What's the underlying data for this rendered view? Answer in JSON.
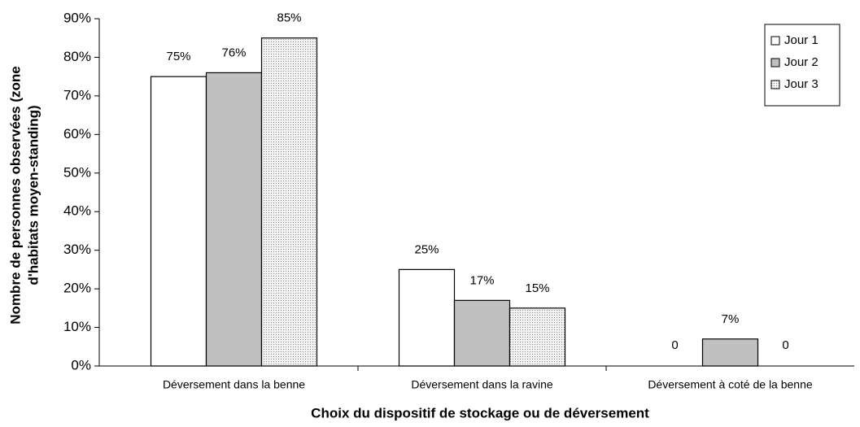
{
  "chart_data": {
    "type": "bar",
    "x_label": "Choix du dispositif de stockage ou de déversement",
    "y_label": [
      "Nombre de personnes observées (zone",
      "d'habitats moyen-standing)"
    ],
    "categories": [
      "Déversement dans la benne",
      "Déversement dans la ravine",
      "Déversement à coté de la benne"
    ],
    "series": [
      {
        "name": "Jour 1",
        "color": "#ffffff",
        "values": [
          75,
          25,
          0
        ],
        "value_labels": [
          "75%",
          "25%",
          "0"
        ]
      },
      {
        "name": "Jour 2",
        "color": "#c0c0c0",
        "values": [
          76,
          17,
          7
        ],
        "value_labels": [
          "76%",
          "17%",
          "7%"
        ]
      },
      {
        "name": "Jour 3",
        "color": "#e8e8e8",
        "pattern": "dots",
        "values": [
          85,
          15,
          0
        ],
        "value_labels": [
          "85%",
          "15%",
          "0"
        ]
      }
    ],
    "ylim": [
      0,
      90
    ],
    "yticks": [
      {
        "value": 0,
        "label": "0%"
      },
      {
        "value": 10,
        "label": "10%"
      },
      {
        "value": 20,
        "label": "20%"
      },
      {
        "value": 30,
        "label": "30%"
      },
      {
        "value": 40,
        "label": "40%"
      },
      {
        "value": 50,
        "label": "50%"
      },
      {
        "value": 60,
        "label": "60%"
      },
      {
        "value": 70,
        "label": "70%"
      },
      {
        "value": 80,
        "label": "80%"
      },
      {
        "value": 90,
        "label": "90%"
      }
    ],
    "legend": "top-right"
  }
}
